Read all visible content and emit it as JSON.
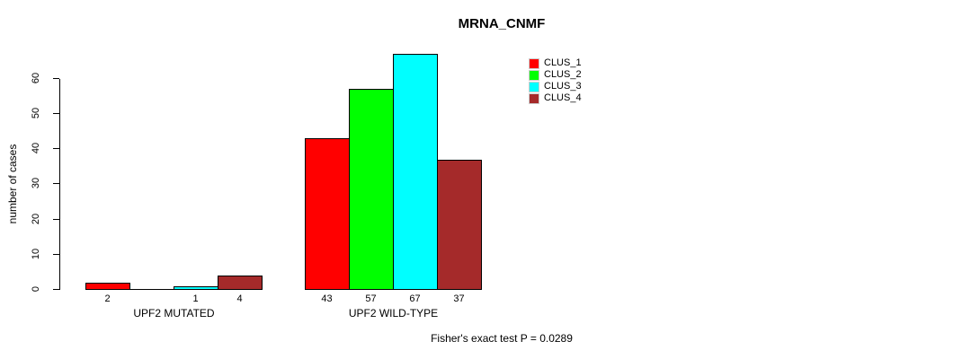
{
  "chart_data": {
    "type": "bar",
    "title": "MRNA_CNMF",
    "xlabel": "",
    "ylabel": "number of cases",
    "ylim": [
      0,
      60
    ],
    "yticks": [
      0,
      10,
      20,
      30,
      40,
      50,
      60
    ],
    "grid": false,
    "legend_position": "top-right-inside",
    "categories": [
      "UPF2 MUTATED",
      "UPF2 WILD-TYPE"
    ],
    "series": [
      {
        "name": "CLUS_1",
        "color": "#ff0000",
        "values": [
          2,
          43
        ]
      },
      {
        "name": "CLUS_2",
        "color": "#00ff00",
        "values": [
          0,
          57
        ]
      },
      {
        "name": "CLUS_3",
        "color": "#00ffff",
        "values": [
          1,
          67
        ]
      },
      {
        "name": "CLUS_4",
        "color": "#a52a2a",
        "values": [
          4,
          37
        ]
      }
    ],
    "bar_value_labels": [
      [
        "2",
        "",
        "1",
        "4"
      ],
      [
        "43",
        "57",
        "67",
        "37"
      ]
    ],
    "annotation": "Fisher's exact test P = 0.0289"
  }
}
